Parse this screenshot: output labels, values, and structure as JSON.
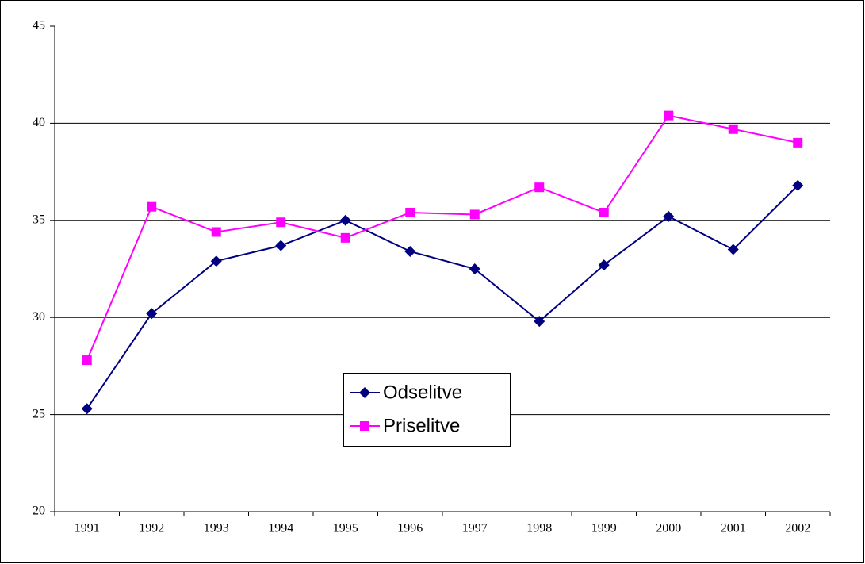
{
  "chart_data": {
    "type": "line",
    "categories": [
      "1991",
      "1992",
      "1993",
      "1994",
      "1995",
      "1996",
      "1997",
      "1998",
      "1999",
      "2000",
      "2001",
      "2002"
    ],
    "series": [
      {
        "name": "Odselitve",
        "color": "#000080",
        "marker": "diamond",
        "values": [
          25.3,
          30.2,
          32.9,
          33.7,
          35.0,
          33.4,
          32.5,
          29.8,
          32.7,
          35.2,
          33.5,
          36.8
        ]
      },
      {
        "name": "Priselitve",
        "color": "#ff00ff",
        "marker": "square",
        "values": [
          27.8,
          35.7,
          34.4,
          34.9,
          34.1,
          35.4,
          35.3,
          36.7,
          35.4,
          40.4,
          39.7,
          39.0
        ]
      }
    ],
    "ylim": [
      20,
      45
    ],
    "yticks": [
      20,
      25,
      30,
      35,
      40,
      45
    ],
    "grid": true,
    "legend": "center"
  }
}
